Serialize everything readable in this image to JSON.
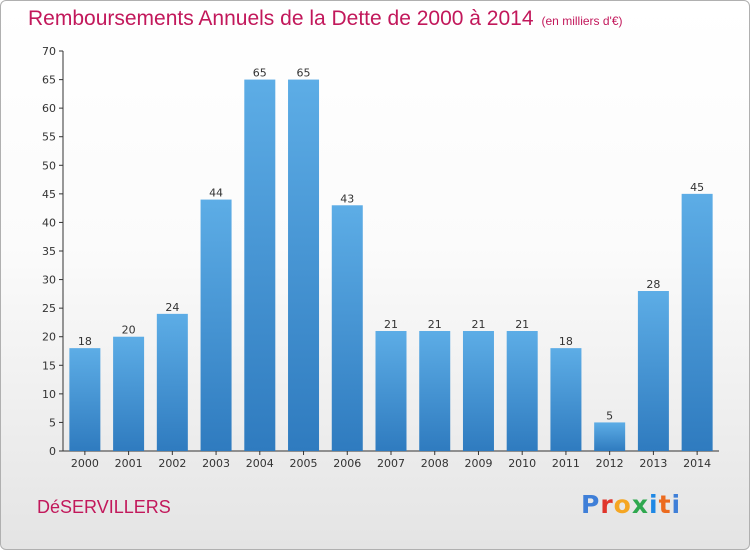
{
  "title": "Remboursements Annuels de la Dette de 2000 à 2014",
  "unit_note": "(en milliers d'€)",
  "commune": "DéSERVILLERS",
  "logo_text": "Proxiti",
  "colors": {
    "title": "#c2185b",
    "bar_light": "#5dade6",
    "bar_dark": "#2f7bbf"
  },
  "chart_data": {
    "type": "bar",
    "title": "Remboursements Annuels de la Dette de 2000 à 2014",
    "unit": "(en milliers d'€)",
    "categories": [
      "2000",
      "2001",
      "2002",
      "2003",
      "2004",
      "2005",
      "2006",
      "2007",
      "2008",
      "2009",
      "2010",
      "2011",
      "2012",
      "2013",
      "2014"
    ],
    "values": [
      18,
      20,
      24,
      44,
      65,
      65,
      43,
      21,
      21,
      21,
      21,
      18,
      5,
      28,
      45
    ],
    "ylim": [
      0,
      70
    ],
    "yticks": [
      0,
      5,
      10,
      15,
      20,
      25,
      30,
      35,
      40,
      45,
      50,
      55,
      60,
      65,
      70
    ],
    "grid": false,
    "data_labels": true
  }
}
